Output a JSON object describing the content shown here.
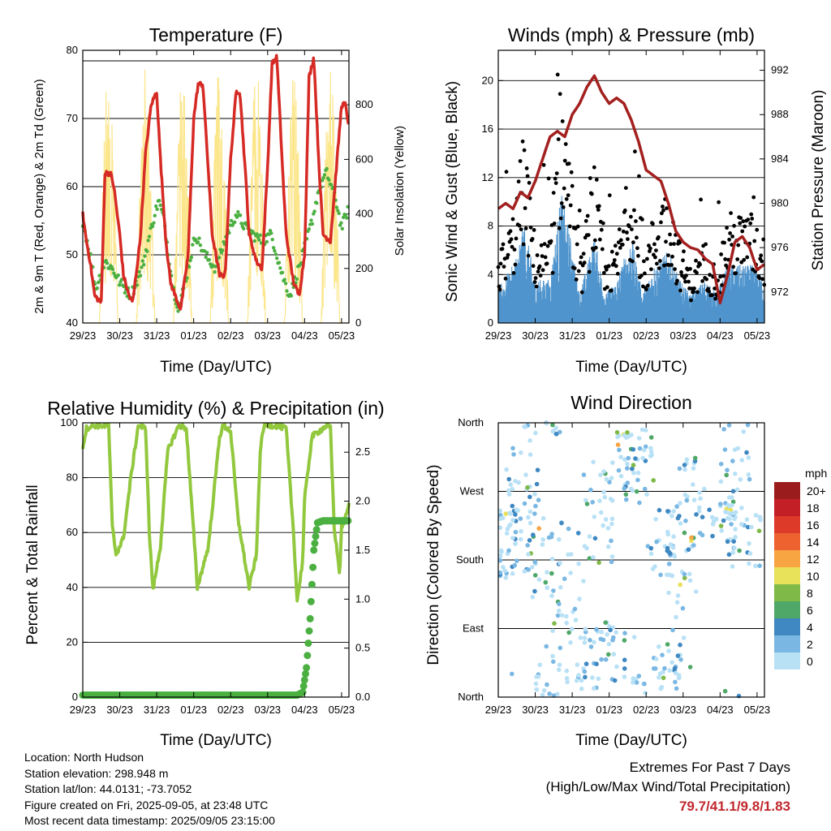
{
  "common": {
    "x_ticks": [
      "29/23",
      "30/23",
      "31/23",
      "01/23",
      "02/23",
      "03/23",
      "04/23",
      "05/23"
    ]
  },
  "temperature": {
    "title": "Temperature (F)",
    "xlabel": "Time (Day/UTC)",
    "ylabel_left": "2m & 9m T (Red, Orange) & 2m Td (Green)",
    "ylabel_right": "Solar Insolation (Yellow)"
  },
  "winds": {
    "title": "Winds (mph) & Pressure (mb)",
    "xlabel": "Time (Day/UTC)",
    "ylabel_left": "Sonic Wind & Gust (Blue, Black)",
    "ylabel_right": "Station Pressure (Maroon)"
  },
  "humidity": {
    "title": "Relative Humidity (%) & Precipitation (in)",
    "xlabel": "Time (Day/UTC)",
    "ylabel_left": "Percent & Total Rainfall"
  },
  "direction": {
    "title": "Wind Direction",
    "xlabel": "Time (Day/UTC)",
    "ylabel_left": "Direction (Colored By Speed)",
    "legend_title": "mph",
    "legend_labels": [
      "20+",
      "18",
      "16",
      "14",
      "12",
      "10",
      "8",
      "6",
      "4",
      "2",
      "0"
    ]
  },
  "chart_data": [
    {
      "type": "line",
      "x_ticks": [
        "29/23",
        "30/23",
        "31/23",
        "01/23",
        "02/23",
        "03/23",
        "04/23",
        "05/23"
      ],
      "ylim": [
        40,
        80
      ],
      "y2lim": [
        0,
        1000
      ],
      "yticks": [
        40,
        50,
        60,
        70,
        80
      ],
      "y2ticks": [
        0,
        200,
        400,
        600,
        800
      ],
      "series": [
        {
          "color": "#d62a24",
          "x": [
            0,
            0.1,
            0.2,
            0.32,
            0.5,
            0.6,
            0.75,
            0.84,
            1.0,
            1.1,
            1.25,
            1.35,
            1.55,
            1.7,
            1.85,
            2.0,
            2.1,
            2.25,
            2.37,
            2.5,
            2.65,
            2.85,
            3.0,
            3.12,
            3.25,
            3.4,
            3.5,
            3.7,
            3.85,
            4.0,
            4.15,
            4.25,
            4.4,
            4.5,
            4.7,
            4.85,
            5.0,
            5.12,
            5.25,
            5.4,
            5.5,
            5.7,
            5.85,
            6.0,
            6.12,
            6.25,
            6.4,
            6.5,
            6.7,
            6.85,
            7.0,
            7.1,
            7.2
          ],
          "y": [
            56,
            52,
            49,
            44,
            43,
            62,
            62,
            60,
            53,
            47,
            44,
            43,
            52,
            65,
            72,
            74,
            64,
            52,
            46,
            44,
            42,
            50,
            70,
            75,
            75,
            62,
            53,
            47,
            47,
            64,
            74,
            74,
            62,
            53,
            49,
            48,
            63,
            78,
            79,
            63,
            53,
            46,
            44,
            50,
            76,
            79,
            62,
            53,
            52,
            62,
            72,
            72,
            69
          ]
        },
        {
          "color": "#4bb041",
          "x": [
            0,
            0.2,
            0.35,
            0.6,
            0.8,
            1.0,
            1.3,
            1.6,
            1.9,
            2.05,
            2.2,
            2.45,
            2.6,
            2.85,
            3.05,
            3.3,
            3.6,
            3.9,
            4.15,
            4.4,
            4.6,
            4.85,
            5.1,
            5.4,
            5.6,
            5.9,
            6.2,
            6.4,
            6.6,
            6.85,
            7.0,
            7.2
          ],
          "y": [
            55,
            50,
            45,
            49,
            48,
            46,
            44,
            48,
            55,
            58,
            55,
            45,
            42,
            48,
            53,
            50,
            48,
            53,
            56,
            54,
            53,
            52,
            53,
            47,
            44,
            49,
            55,
            60,
            62,
            58,
            54,
            57
          ]
        },
        {
          "color": "#fce68c",
          "name_hidden": "solar",
          "x": [
            0,
            0.4,
            0.8,
            1.4,
            1.8,
            2.4,
            2.8,
            3.4,
            3.8,
            4.4,
            4.8,
            5.4,
            5.8,
            6.4,
            6.8
          ],
          "y2": [
            0,
            600,
            0,
            0,
            950,
            0,
            0,
            800,
            0,
            0,
            800,
            0,
            0,
            700,
            0
          ]
        }
      ]
    },
    {
      "type": "scatter",
      "x_ticks": [
        "29/23",
        "30/23",
        "31/23",
        "01/23",
        "02/23",
        "03/23",
        "04/23",
        "05/23"
      ],
      "ylim": [
        0,
        22.5
      ],
      "yticks": [
        0,
        4,
        8,
        12,
        16,
        20
      ],
      "y2lim": [
        969.2,
        993.8
      ],
      "y2ticks": [
        972,
        976,
        980,
        984,
        988,
        992
      ],
      "pressure": {
        "x": [
          0,
          0.2,
          0.4,
          0.6,
          0.8,
          1.0,
          1.2,
          1.4,
          1.6,
          1.8,
          2.0,
          2.2,
          2.4,
          2.6,
          2.8,
          3.0,
          3.2,
          3.4,
          3.6,
          3.8,
          4.0,
          4.2,
          4.4,
          4.6,
          4.8,
          5.0,
          5.2,
          5.4,
          5.6,
          5.8,
          6.0,
          6.2,
          6.4,
          6.6,
          6.8,
          7.0,
          7.2
        ],
        "y": [
          979.5,
          980.0,
          979.5,
          981.0,
          980.5,
          982.0,
          984.0,
          986.0,
          986.5,
          986.0,
          988.0,
          989.0,
          990.5,
          991.5,
          990.0,
          989.0,
          989.5,
          989.0,
          987.5,
          985.5,
          983.0,
          982.5,
          982.0,
          980.0,
          977.5,
          976.5,
          976.0,
          975.8,
          975.0,
          974.5,
          971.0,
          973.5,
          976.5,
          977.0,
          976.0,
          974.0,
          974.5
        ]
      }
    },
    {
      "type": "line",
      "x_ticks": [
        "29/23",
        "30/23",
        "31/23",
        "01/23",
        "02/23",
        "03/23",
        "04/23",
        "05/23"
      ],
      "ylim": [
        0,
        100
      ],
      "yticks": [
        0,
        20,
        40,
        60,
        80,
        100
      ],
      "y2lim": [
        0,
        2.8
      ],
      "y2ticks": [
        0.0,
        0.5,
        1.0,
        1.5,
        2.0,
        2.5
      ],
      "series": [
        {
          "color": "#92c83e",
          "x": [
            0,
            0.1,
            0.3,
            0.7,
            0.8,
            0.9,
            1.1,
            1.3,
            1.5,
            1.7,
            1.8,
            1.9,
            2.1,
            2.3,
            2.6,
            2.8,
            3.0,
            3.1,
            3.4,
            3.7,
            3.8,
            4.0,
            4.2,
            4.5,
            4.7,
            4.8,
            4.9,
            5.2,
            5.5,
            5.7,
            5.8,
            5.95,
            6.0,
            6.2,
            6.6,
            6.7,
            6.8,
            6.95,
            7.0,
            7.1,
            7.2
          ],
          "y": [
            91,
            98,
            99,
            99,
            62,
            52,
            58,
            80,
            99,
            98,
            60,
            39,
            55,
            90,
            99,
            98,
            60,
            40,
            55,
            95,
            99,
            97,
            65,
            40,
            52,
            90,
            99,
            99,
            98,
            60,
            35,
            50,
            72,
            95,
            99,
            98,
            62,
            45,
            62,
            65,
            70
          ]
        },
        {
          "color": "#4bb041",
          "x": [
            0,
            5.8,
            5.95,
            6.05,
            6.15,
            6.25,
            6.35,
            6.5,
            7.2
          ],
          "y2": [
            0.02,
            0.02,
            0.05,
            0.3,
            0.8,
            1.5,
            1.78,
            1.8,
            1.8
          ]
        }
      ]
    },
    {
      "type": "scatter",
      "x_ticks": [
        "29/23",
        "30/23",
        "31/23",
        "01/23",
        "02/23",
        "03/23",
        "04/23",
        "05/23"
      ],
      "y_categories": [
        "North",
        "East",
        "South",
        "West",
        "North"
      ],
      "legend_title": "mph",
      "legend": [
        {
          "label": "20+",
          "color": "#9b1c1c"
        },
        {
          "label": "18",
          "color": "#c21f26"
        },
        {
          "label": "16",
          "color": "#dd3a2a"
        },
        {
          "label": "14",
          "color": "#ee6230"
        },
        {
          "label": "12",
          "color": "#f7a443"
        },
        {
          "label": "10",
          "color": "#e8e15a"
        },
        {
          "label": "8",
          "color": "#7fba48"
        },
        {
          "label": "6",
          "color": "#4fa868"
        },
        {
          "label": "4",
          "color": "#3f88c2"
        },
        {
          "label": "2",
          "color": "#7ab8e3"
        },
        {
          "label": "0",
          "color": "#b9e1f6"
        }
      ]
    }
  ],
  "footer": {
    "location": "Location: North Hudson",
    "elevation": "Station elevation: 298.948 m",
    "latlon": "Station lat/lon: 44.0131; -73.7052",
    "created": "Figure created on Fri, 2025-09-05, at 23:48 UTC",
    "recent": "Most recent data timestamp: 2025/09/05 23:15:00"
  },
  "extremes": {
    "line1": "Extremes For Past 7 Days",
    "line2": "(High/Low/Max Wind/Total Precipitation)",
    "values": "79.7/41.1/9.8/1.83"
  }
}
